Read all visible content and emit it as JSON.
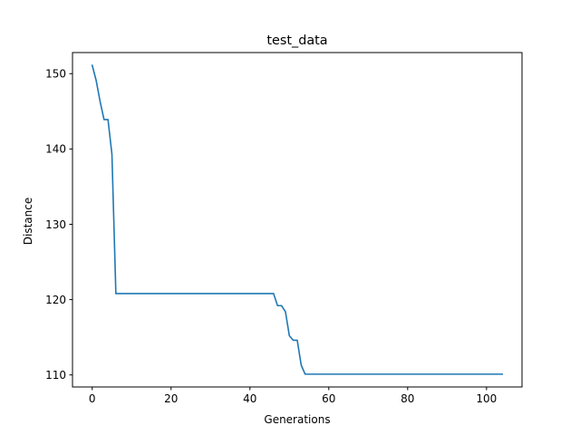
{
  "chart_data": {
    "type": "line",
    "title": "test_data",
    "xlabel": "Generations",
    "ylabel": "Distance",
    "xlim": [
      -5,
      109
    ],
    "ylim": [
      108.4,
      152.8
    ],
    "xticks": [
      0,
      20,
      40,
      60,
      80,
      100
    ],
    "yticks": [
      110,
      120,
      130,
      140,
      150
    ],
    "grid": false,
    "series": [
      {
        "color": "#1f77b4",
        "x": [
          0,
          1,
          2,
          3,
          4,
          5,
          6,
          7,
          8,
          9,
          10,
          11,
          12,
          13,
          14,
          15,
          16,
          17,
          18,
          19,
          20,
          21,
          22,
          23,
          24,
          25,
          26,
          27,
          28,
          29,
          30,
          31,
          32,
          33,
          34,
          35,
          36,
          37,
          38,
          39,
          40,
          41,
          42,
          43,
          44,
          45,
          46,
          47,
          48,
          49,
          50,
          51,
          52,
          53,
          54,
          55,
          56,
          57,
          58,
          59,
          60,
          61,
          62,
          63,
          64,
          65,
          66,
          67,
          68,
          69,
          70,
          71,
          72,
          73,
          74,
          75,
          76,
          77,
          78,
          79,
          80,
          81,
          82,
          83,
          84,
          85,
          86,
          87,
          88,
          89,
          90,
          91,
          92,
          93,
          94,
          95,
          96,
          97,
          98,
          99,
          100,
          101,
          102,
          103,
          104
        ],
        "y": [
          151.1,
          149.1,
          146.3,
          143.9,
          143.9,
          139.3,
          120.8,
          120.8,
          120.8,
          120.8,
          120.8,
          120.8,
          120.8,
          120.8,
          120.8,
          120.8,
          120.8,
          120.8,
          120.8,
          120.8,
          120.8,
          120.8,
          120.8,
          120.8,
          120.8,
          120.8,
          120.8,
          120.8,
          120.8,
          120.8,
          120.8,
          120.8,
          120.8,
          120.8,
          120.8,
          120.8,
          120.8,
          120.8,
          120.8,
          120.8,
          120.8,
          120.8,
          120.8,
          120.8,
          120.8,
          120.8,
          120.8,
          119.2,
          119.2,
          118.4,
          115.2,
          114.6,
          114.6,
          111.3,
          110.1,
          110.1,
          110.1,
          110.1,
          110.1,
          110.1,
          110.1,
          110.1,
          110.1,
          110.1,
          110.1,
          110.1,
          110.1,
          110.1,
          110.1,
          110.1,
          110.1,
          110.1,
          110.1,
          110.1,
          110.1,
          110.1,
          110.1,
          110.1,
          110.1,
          110.1,
          110.1,
          110.1,
          110.1,
          110.1,
          110.1,
          110.1,
          110.1,
          110.1,
          110.1,
          110.1,
          110.1,
          110.1,
          110.1,
          110.1,
          110.1,
          110.1,
          110.1,
          110.1,
          110.1,
          110.1,
          110.1,
          110.1,
          110.1,
          110.1,
          110.1
        ]
      }
    ]
  }
}
